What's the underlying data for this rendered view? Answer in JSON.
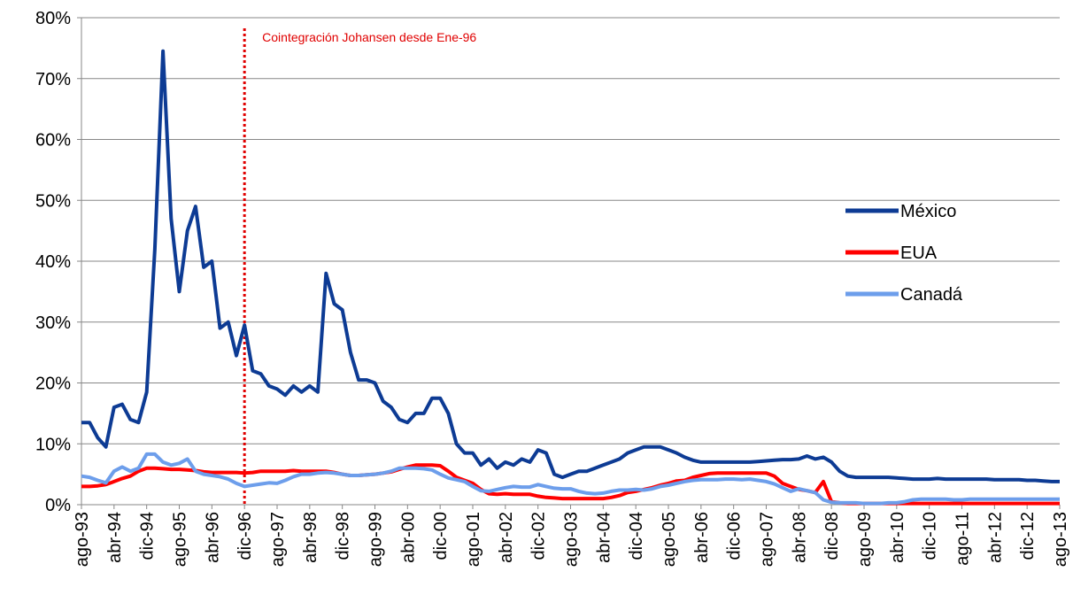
{
  "chart_data": {
    "type": "line",
    "annotation": "Cointegración  Johansen desde Ene-96",
    "categories": [
      "ago-93",
      null,
      null,
      null,
      "abr-94",
      null,
      null,
      null,
      "dic-94",
      null,
      null,
      null,
      "ago-95",
      null,
      null,
      null,
      "abr-96",
      null,
      null,
      null,
      "dic-96",
      null,
      null,
      null,
      "ago-97",
      null,
      null,
      null,
      "abr-98",
      null,
      null,
      null,
      "dic-98",
      null,
      null,
      null,
      "ago-99",
      null,
      null,
      null,
      "abr-00",
      null,
      null,
      null,
      "dic-00",
      null,
      null,
      null,
      "ago-01",
      null,
      null,
      null,
      "abr-02",
      null,
      null,
      null,
      "dic-02",
      null,
      null,
      null,
      "ago-03",
      null,
      null,
      null,
      "abr-04",
      null,
      null,
      null,
      "dic-04",
      null,
      null,
      null,
      "ago-05",
      null,
      null,
      null,
      "abr-06",
      null,
      null,
      null,
      "dic-06",
      null,
      null,
      null,
      "ago-07",
      null,
      null,
      null,
      "abr-08",
      null,
      null,
      null,
      "dic-08",
      null,
      null,
      null,
      "ago-09",
      null,
      null,
      null,
      "abr-10",
      null,
      null,
      null,
      "dic-10",
      null,
      null,
      null,
      "ago-11",
      null,
      null,
      null,
      "abr-12",
      null,
      null,
      null,
      "dic-12",
      null,
      null,
      null,
      "ago-13"
    ],
    "series": [
      {
        "name": "México",
        "color": "#0d3b94",
        "values": [
          13.5,
          13.5,
          11,
          9.5,
          16,
          16.5,
          14,
          13.5,
          18.5,
          42,
          74.5,
          47,
          35,
          45,
          49,
          39,
          40,
          29,
          30,
          24.5,
          29.5,
          22,
          21.5,
          19.5,
          19,
          18,
          19.5,
          18.5,
          19.5,
          18.5,
          38,
          33,
          32,
          25,
          20.5,
          20.5,
          20,
          17,
          16,
          14,
          13.5,
          15,
          15,
          17.5,
          17.5,
          15,
          10,
          8.5,
          8.5,
          6.5,
          7.5,
          6,
          7,
          6.5,
          7.5,
          7,
          9,
          8.5,
          5,
          4.5,
          5,
          5.5,
          5.5,
          6,
          6.5,
          7,
          7.5,
          8.5,
          9,
          9.5,
          9.5,
          9.5,
          9,
          8.5,
          7.8,
          7.3,
          7,
          7,
          7,
          7,
          7,
          7,
          7,
          7.1,
          7.2,
          7.3,
          7.4,
          7.4,
          7.5,
          8,
          7.5,
          7.8,
          7,
          5.5,
          4.7,
          4.5,
          4.5,
          4.5,
          4.5,
          4.5,
          4.4,
          4.3,
          4.2,
          4.2,
          4.2,
          4.3,
          4.2,
          4.2,
          4.2,
          4.2,
          4.2,
          4.2,
          4.1,
          4.1,
          4.1,
          4.1,
          4,
          4,
          3.9,
          3.8,
          3.8
        ]
      },
      {
        "name": "EUA",
        "color": "#ff0000",
        "values": [
          3,
          3,
          3.1,
          3.3,
          3.8,
          4.3,
          4.7,
          5.5,
          6,
          6,
          5.9,
          5.8,
          5.8,
          5.7,
          5.6,
          5.4,
          5.3,
          5.3,
          5.3,
          5.3,
          5.2,
          5.3,
          5.5,
          5.5,
          5.5,
          5.5,
          5.6,
          5.5,
          5.5,
          5.5,
          5.5,
          5.3,
          5,
          4.8,
          4.8,
          4.9,
          5,
          5.2,
          5.4,
          5.8,
          6.2,
          6.5,
          6.5,
          6.5,
          6.4,
          5.5,
          4.5,
          4,
          3.5,
          2.5,
          1.8,
          1.7,
          1.8,
          1.7,
          1.7,
          1.7,
          1.4,
          1.2,
          1.1,
          1,
          1,
          1,
          1,
          1,
          1,
          1.2,
          1.5,
          2,
          2.2,
          2.5,
          2.8,
          3.2,
          3.5,
          3.9,
          4,
          4.5,
          4.8,
          5.1,
          5.2,
          5.2,
          5.2,
          5.2,
          5.2,
          5.2,
          5.2,
          4.7,
          3.5,
          3,
          2.5,
          2.3,
          2,
          3.8,
          0.5,
          0.3,
          0.2,
          0.2,
          0.2,
          0.2,
          0.2,
          0.2,
          0.2,
          0.2,
          0.2,
          0.2,
          0.2,
          0.2,
          0.2,
          0.2,
          0.2,
          0.2,
          0.2,
          0.2,
          0.2,
          0.2,
          0.2,
          0.2,
          0.2,
          0.2,
          0.2,
          0.2,
          0.2
        ]
      },
      {
        "name": "Canadá",
        "color": "#6d9eeb",
        "values": [
          4.7,
          4.5,
          4,
          3.6,
          5.5,
          6.2,
          5.5,
          6,
          8.3,
          8.3,
          7,
          6.5,
          6.8,
          7.5,
          5.5,
          5,
          4.8,
          4.6,
          4.2,
          3.5,
          3,
          3.2,
          3.4,
          3.6,
          3.5,
          4,
          4.6,
          5,
          5,
          5.2,
          5.3,
          5.2,
          5,
          4.8,
          4.8,
          4.9,
          5,
          5.2,
          5.5,
          6,
          6,
          6,
          5.9,
          5.7,
          5,
          4.4,
          4.1,
          3.8,
          3,
          2.3,
          2.2,
          2.5,
          2.8,
          3,
          2.9,
          2.9,
          3.3,
          3,
          2.7,
          2.6,
          2.6,
          2.2,
          1.9,
          1.8,
          1.9,
          2.2,
          2.4,
          2.4,
          2.5,
          2.4,
          2.6,
          3,
          3.2,
          3.5,
          3.8,
          4,
          4.1,
          4.1,
          4.1,
          4.2,
          4.2,
          4.1,
          4.2,
          4,
          3.8,
          3.4,
          2.8,
          2.2,
          2.6,
          2.3,
          2,
          0.8,
          0.4,
          0.3,
          0.3,
          0.3,
          0.2,
          0.2,
          0.2,
          0.3,
          0.3,
          0.5,
          0.8,
          0.9,
          0.9,
          0.9,
          0.9,
          0.8,
          0.8,
          0.9,
          0.9,
          0.9,
          0.9,
          0.9,
          0.9,
          0.9,
          0.9,
          0.9,
          0.9,
          0.9,
          0.9
        ]
      }
    ],
    "ylim": [
      0,
      80
    ],
    "yticks": [
      {
        "value": 0,
        "label": "0%"
      },
      {
        "value": 10,
        "label": "10%"
      },
      {
        "value": 20,
        "label": "20%"
      },
      {
        "value": 30,
        "label": "30%"
      },
      {
        "value": 40,
        "label": "40%"
      },
      {
        "value": 50,
        "label": "50%"
      },
      {
        "value": 60,
        "label": "60%"
      },
      {
        "value": 70,
        "label": "70%"
      },
      {
        "value": 80,
        "label": "80%"
      }
    ],
    "grid": true,
    "legend": "right"
  }
}
